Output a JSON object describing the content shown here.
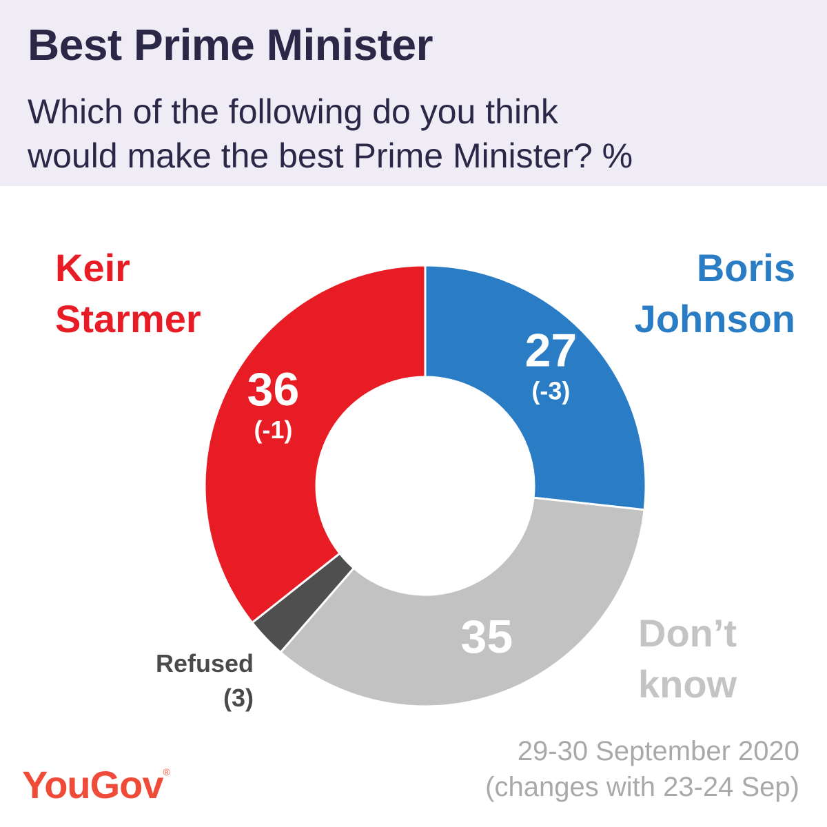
{
  "header": {
    "title": "Best Prime Minister",
    "subtitle_lines": [
      "Which of the following do you think",
      "would make the best Prime Minister? %"
    ]
  },
  "footer": {
    "date_lines": [
      "29-30 September 2020",
      "(changes with 23-24 Sep)"
    ],
    "logo": "YouGov",
    "logo_mark": "®"
  },
  "chart_data": {
    "type": "pie",
    "donut": true,
    "slices": [
      {
        "name_lines": [
          "Boris",
          "Johnson"
        ],
        "value": 27,
        "value_label": "27",
        "change_label": "(-3)",
        "color": "#2a7dc4"
      },
      {
        "name_lines": [
          "Don’t",
          "know"
        ],
        "value": 35,
        "value_label": "35",
        "change_label": "",
        "color": "#c2c2c2"
      },
      {
        "name_lines": [
          "Refused",
          "(3)"
        ],
        "value": 3,
        "value_label": "",
        "change_label": "",
        "color": "#4f4f4f"
      },
      {
        "name_lines": [
          "Keir",
          "Starmer"
        ],
        "value": 36,
        "value_label": "36",
        "change_label": "(-1)",
        "color": "#e81c24"
      }
    ]
  },
  "colors": {
    "header_bg": "#efecf6",
    "title_text": "#2a2747",
    "footer_text": "#a9a9a9",
    "logo": "#ef4b38"
  }
}
